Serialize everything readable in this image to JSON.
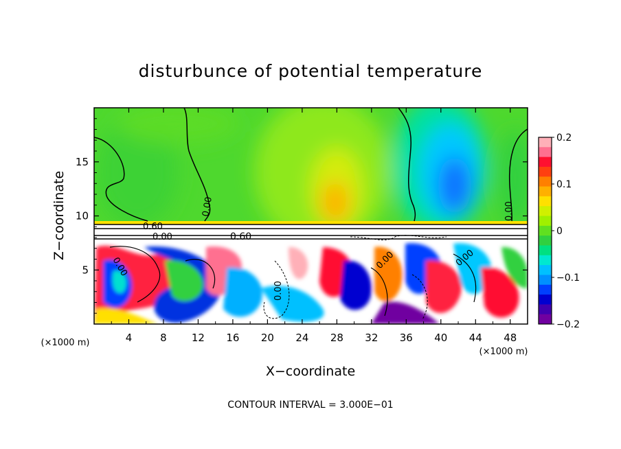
{
  "chart_data": {
    "type": "heatmap",
    "title": "disturbunce of potential temperature",
    "xlabel": "X−coordinate",
    "ylabel": "Z−coordinate",
    "x_unit_left": "(×1000 m)",
    "x_unit_right": "(×1000 m)",
    "xlim": [
      0,
      50
    ],
    "ylim": [
      0,
      20
    ],
    "x_ticks": [
      4,
      8,
      12,
      16,
      20,
      24,
      28,
      32,
      36,
      40,
      44,
      48
    ],
    "y_ticks": [
      5,
      10,
      15
    ],
    "colorbar": {
      "range": [
        -0.2,
        0.2
      ],
      "ticks": [
        0.2,
        0.1,
        0,
        -0.1,
        -0.2
      ],
      "tick_labels": [
        "0.2",
        "0.1",
        "0",
        "−0.1",
        "−0.2"
      ],
      "colors": [
        "#ffb0b8",
        "#ff7090",
        "#ff1030",
        "#ff4010",
        "#ff8000",
        "#ffb000",
        "#ffe000",
        "#d0f000",
        "#a0f000",
        "#60e020",
        "#30d040",
        "#00e080",
        "#00e8d0",
        "#00c0ff",
        "#0090ff",
        "#0040ff",
        "#0000d0",
        "#4000b0",
        "#7000a0"
      ]
    },
    "contour_labels": [
      "0.00",
      "0.60",
      "0.60",
      "0.00",
      "0.00",
      "0.00",
      "0.00",
      "0.00",
      "0.00"
    ],
    "footer": "CONTOUR INTERVAL = 3.000E−01"
  }
}
